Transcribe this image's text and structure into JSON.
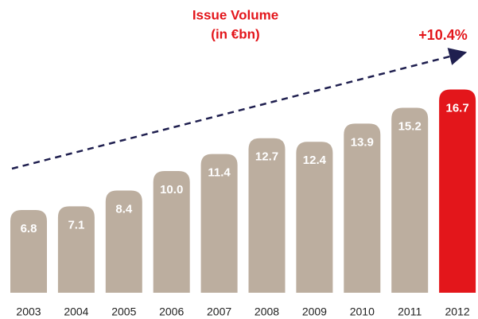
{
  "chart_data": {
    "type": "bar",
    "title": "Issue Volume",
    "subtitle": "(in €bn)",
    "annotation": "+10.4%",
    "categories": [
      "2003",
      "2004",
      "2005",
      "2006",
      "2007",
      "2008",
      "2009",
      "2010",
      "2011",
      "2012"
    ],
    "values": [
      6.8,
      7.1,
      8.4,
      10.0,
      11.4,
      12.7,
      12.4,
      13.9,
      15.2,
      16.7
    ],
    "value_labels": [
      "6.8",
      "7.1",
      "8.4",
      "10.0",
      "11.4",
      "12.7",
      "12.4",
      "13.9",
      "15.2",
      "16.7"
    ],
    "colors": [
      "#bcae9f",
      "#bcae9f",
      "#bcae9f",
      "#bcae9f",
      "#bcae9f",
      "#bcae9f",
      "#bcae9f",
      "#bcae9f",
      "#bcae9f",
      "#e3161b"
    ]
  }
}
